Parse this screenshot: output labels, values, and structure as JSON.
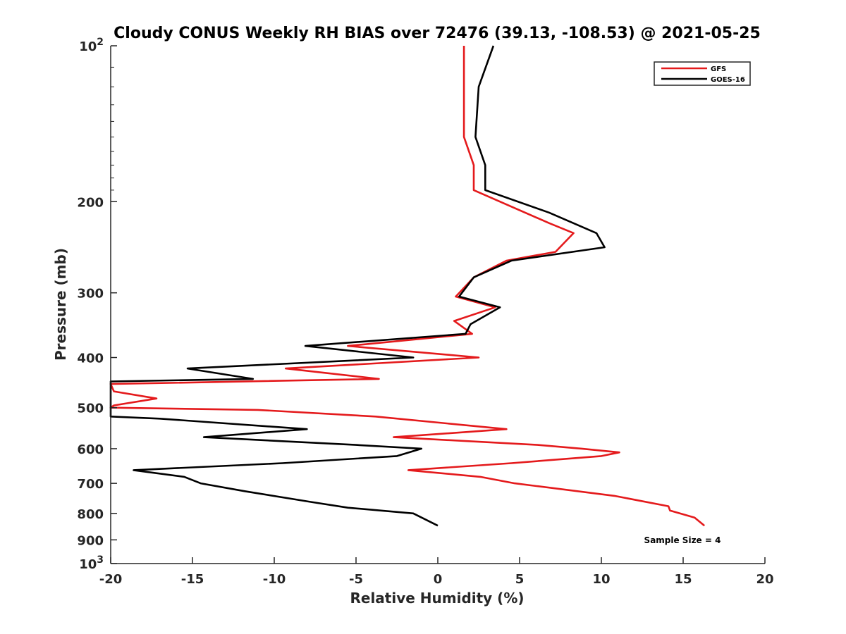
{
  "chart_data": {
    "type": "line",
    "title": "Cloudy CONUS Weekly RH BIAS over 72476 (39.13, -108.53) @ 2021-05-25",
    "xlabel": "Relative Humidity (%)",
    "ylabel": "Pressure (mb)",
    "xlim": [
      -20,
      20
    ],
    "ylim": [
      100,
      1000
    ],
    "y_scale": "log",
    "y_reversed": true,
    "x_ticks": [
      "-20",
      "-15",
      "-10",
      "-5",
      "0",
      "5",
      "10",
      "15",
      "20"
    ],
    "y_ticks": [
      {
        "value": 100,
        "base": "10",
        "exp": "2"
      },
      {
        "value": 200,
        "label": "200"
      },
      {
        "value": 300,
        "label": "300"
      },
      {
        "value": 400,
        "label": "400"
      },
      {
        "value": 500,
        "label": "500"
      },
      {
        "value": 600,
        "label": "600"
      },
      {
        "value": 700,
        "label": "700"
      },
      {
        "value": 800,
        "label": "800"
      },
      {
        "value": 900,
        "label": "900"
      },
      {
        "value": 1000,
        "base": "10",
        "exp": "3"
      }
    ],
    "grid": false,
    "legend_position": "top-right",
    "annotation": "Sample Size = 4",
    "series": [
      {
        "name": "GFS",
        "color": "#e41a1c",
        "points": [
          [
            1.6,
            100
          ],
          [
            1.6,
            150
          ],
          [
            2.2,
            170
          ],
          [
            2.2,
            190
          ],
          [
            6.8,
            220
          ],
          [
            8.3,
            230
          ],
          [
            7.2,
            250
          ],
          [
            4.2,
            260
          ],
          [
            2.2,
            280
          ],
          [
            1.1,
            305
          ],
          [
            3.5,
            320
          ],
          [
            1.0,
            340
          ],
          [
            2.1,
            360
          ],
          [
            -5.5,
            380
          ],
          [
            2.5,
            400
          ],
          [
            -9.3,
            420
          ],
          [
            -3.6,
            440
          ],
          [
            -20.0,
            450
          ],
          [
            -19.8,
            465
          ],
          [
            -17.2,
            480
          ],
          [
            -19.8,
            495
          ],
          [
            -20.0,
            500
          ],
          [
            -11.0,
            505
          ],
          [
            -3.8,
            520
          ],
          [
            4.2,
            550
          ],
          [
            -2.7,
            570
          ],
          [
            6.1,
            590
          ],
          [
            8.8,
            600
          ],
          [
            11.1,
            610
          ],
          [
            10.0,
            620
          ],
          [
            4.5,
            640
          ],
          [
            -1.8,
            660
          ],
          [
            2.6,
            680
          ],
          [
            4.7,
            700
          ],
          [
            10.8,
            740
          ],
          [
            14.1,
            775
          ],
          [
            14.2,
            790
          ],
          [
            15.7,
            815
          ],
          [
            16.3,
            845
          ]
        ]
      },
      {
        "name": "GOES-16",
        "color": "#000000",
        "points": [
          [
            3.4,
            100
          ],
          [
            2.5,
            120
          ],
          [
            2.3,
            150
          ],
          [
            2.9,
            170
          ],
          [
            2.9,
            190
          ],
          [
            6.8,
            210
          ],
          [
            9.7,
            230
          ],
          [
            10.2,
            245
          ],
          [
            4.5,
            260
          ],
          [
            2.2,
            280
          ],
          [
            1.3,
            305
          ],
          [
            3.8,
            320
          ],
          [
            2.0,
            345
          ],
          [
            1.7,
            360
          ],
          [
            -8.1,
            380
          ],
          [
            -1.5,
            400
          ],
          [
            -15.3,
            420
          ],
          [
            -11.3,
            440
          ],
          [
            -20.0,
            445
          ],
          [
            -20.0,
            520
          ],
          [
            -17.0,
            525
          ],
          [
            -8.0,
            550
          ],
          [
            -14.3,
            570
          ],
          [
            -5.0,
            590
          ],
          [
            -1.0,
            600
          ],
          [
            -2.5,
            620
          ],
          [
            -9.5,
            640
          ],
          [
            -18.6,
            660
          ],
          [
            -15.5,
            680
          ],
          [
            -14.5,
            700
          ],
          [
            -11.8,
            725
          ],
          [
            -7.8,
            760
          ],
          [
            -5.5,
            780
          ],
          [
            -1.5,
            800
          ],
          [
            0.0,
            845
          ]
        ]
      }
    ]
  }
}
